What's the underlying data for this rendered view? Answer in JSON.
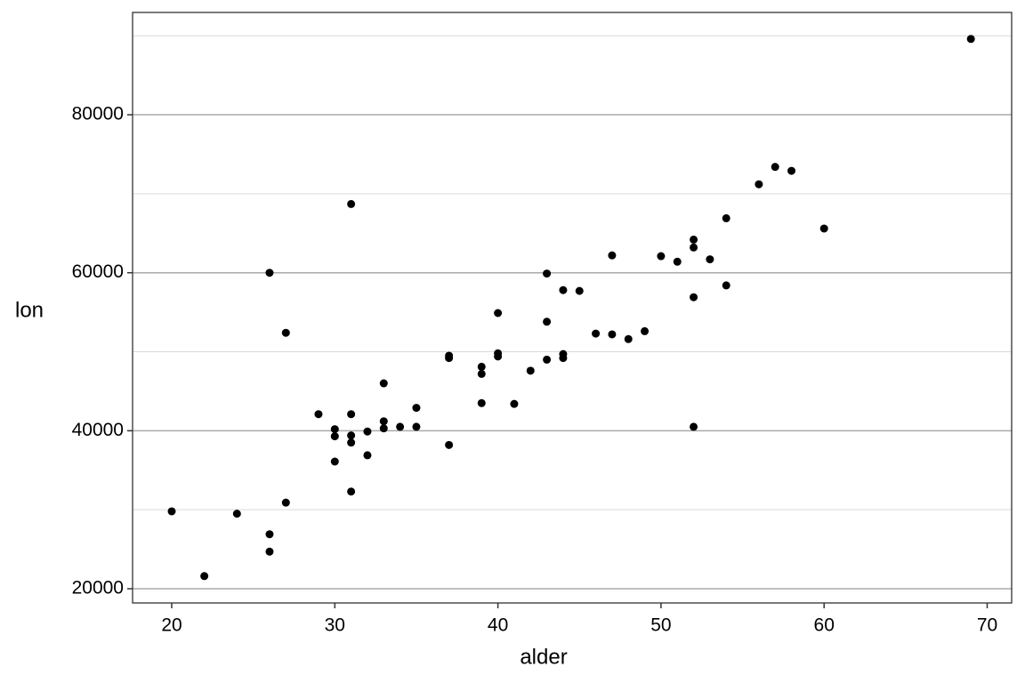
{
  "chart_data": {
    "type": "scatter",
    "x_label": "alder",
    "y_label": "lon",
    "x": [
      20,
      22,
      24,
      26,
      26,
      26,
      27,
      27,
      29,
      30,
      30,
      30,
      31,
      31,
      31,
      31,
      31,
      32,
      32,
      33,
      33,
      33,
      34,
      35,
      35,
      37,
      37,
      37,
      39,
      39,
      39,
      40,
      40,
      40,
      41,
      42,
      43,
      43,
      43,
      44,
      44,
      44,
      45,
      46,
      47,
      47,
      48,
      49,
      50,
      51,
      52,
      52,
      52,
      52,
      53,
      54,
      54,
      56,
      57,
      58,
      60,
      69
    ],
    "y": [
      29800,
      21600,
      29500,
      26900,
      24700,
      60000,
      30900,
      52400,
      42100,
      40200,
      39300,
      36100,
      68700,
      42100,
      39400,
      38500,
      32300,
      39900,
      36900,
      46000,
      41200,
      40300,
      40500,
      42900,
      40500,
      49500,
      49200,
      38200,
      48100,
      47200,
      43500,
      54900,
      49800,
      49400,
      43400,
      47600,
      59900,
      53800,
      49000,
      57800,
      49700,
      49200,
      57700,
      52300,
      62200,
      52200,
      51600,
      52600,
      62100,
      61400,
      64200,
      63200,
      56900,
      40500,
      61700,
      66900,
      58400,
      71200,
      73400,
      72900,
      65600,
      89600
    ],
    "color": "#000000",
    "xlim": [
      17.6,
      71.5
    ],
    "ylim": [
      18200,
      92950
    ],
    "xticks": [
      20,
      30,
      40,
      50,
      60,
      70
    ],
    "yticks": [
      20000,
      40000,
      60000,
      80000
    ],
    "yminorticks": [
      30000,
      50000,
      70000,
      90000
    ],
    "grid": true
  }
}
